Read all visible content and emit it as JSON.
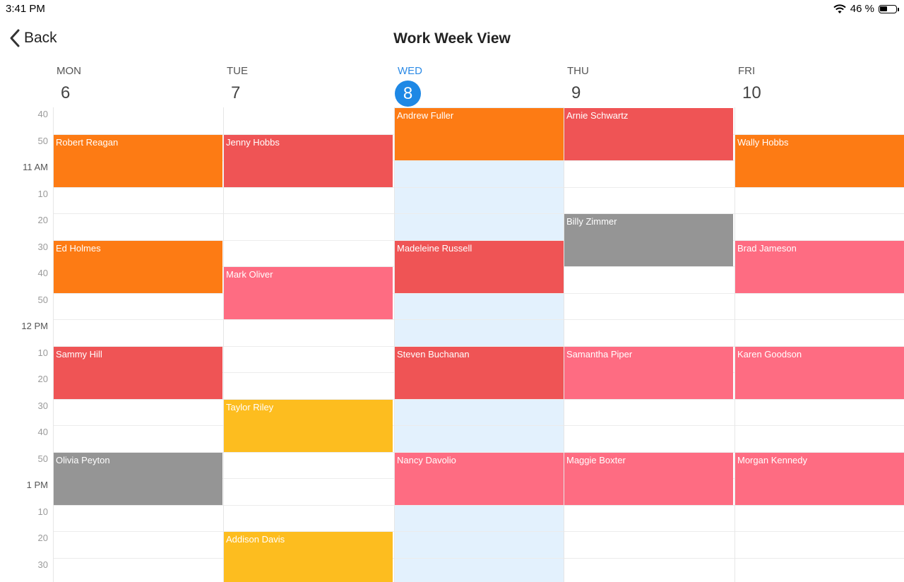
{
  "status": {
    "time": "3:41 PM",
    "battery": "46 %",
    "battery_level": 0.46
  },
  "nav": {
    "back_label": "Back",
    "title": "Work Week View"
  },
  "days": [
    {
      "name": "MON",
      "num": "6"
    },
    {
      "name": "TUE",
      "num": "7"
    },
    {
      "name": "WED",
      "num": "8",
      "today": true
    },
    {
      "name": "THU",
      "num": "9"
    },
    {
      "name": "FRI",
      "num": "10"
    }
  ],
  "time_labels": [
    "40",
    "50",
    "11 AM",
    "10",
    "20",
    "30",
    "40",
    "50",
    "12 PM",
    "10",
    "20",
    "30",
    "40",
    "50",
    "1 PM",
    "10",
    "20",
    "30"
  ],
  "colors": {
    "orange": "#fd7b14",
    "red": "#ef5455",
    "pink": "#fe6c82",
    "gray": "#959595",
    "yellow": "#fdbd1f",
    "today_bg": "#e3f1fd",
    "today_accent": "#1e88e5"
  },
  "appointments": [
    {
      "day": 0,
      "start": 1,
      "span": 2,
      "name": "Robert Reagan",
      "color": "orange"
    },
    {
      "day": 0,
      "start": 5,
      "span": 2,
      "name": "Ed Holmes",
      "color": "orange"
    },
    {
      "day": 0,
      "start": 9,
      "span": 2,
      "name": "Sammy Hill",
      "color": "red"
    },
    {
      "day": 0,
      "start": 13,
      "span": 2,
      "name": "Olivia Peyton",
      "color": "gray"
    },
    {
      "day": 1,
      "start": 1,
      "span": 2,
      "name": "Jenny Hobbs",
      "color": "red"
    },
    {
      "day": 1,
      "start": 6,
      "span": 2,
      "name": "Mark Oliver",
      "color": "pink"
    },
    {
      "day": 1,
      "start": 11,
      "span": 2,
      "name": "Taylor Riley",
      "color": "yellow"
    },
    {
      "day": 1,
      "start": 16,
      "span": 2,
      "name": "Addison Davis",
      "color": "yellow"
    },
    {
      "day": 2,
      "start": 0,
      "span": 2,
      "name": "Andrew Fuller",
      "color": "orange"
    },
    {
      "day": 2,
      "start": 5,
      "span": 2,
      "name": "Madeleine Russell",
      "color": "red"
    },
    {
      "day": 2,
      "start": 9,
      "span": 2,
      "name": "Steven Buchanan",
      "color": "red"
    },
    {
      "day": 2,
      "start": 13,
      "span": 2,
      "name": "Nancy Davolio",
      "color": "pink"
    },
    {
      "day": 3,
      "start": 0,
      "span": 2,
      "name": "Arnie Schwartz",
      "color": "red"
    },
    {
      "day": 3,
      "start": 4,
      "span": 2,
      "name": "Billy Zimmer",
      "color": "gray"
    },
    {
      "day": 3,
      "start": 9,
      "span": 2,
      "name": "Samantha Piper",
      "color": "pink"
    },
    {
      "day": 3,
      "start": 13,
      "span": 2,
      "name": "Maggie Boxter",
      "color": "pink"
    },
    {
      "day": 4,
      "start": 1,
      "span": 2,
      "name": "Wally Hobbs",
      "color": "orange"
    },
    {
      "day": 4,
      "start": 5,
      "span": 2,
      "name": "Brad Jameson",
      "color": "pink"
    },
    {
      "day": 4,
      "start": 9,
      "span": 2,
      "name": "Karen Goodson",
      "color": "pink"
    },
    {
      "day": 4,
      "start": 13,
      "span": 2,
      "name": "Morgan Kennedy",
      "color": "pink"
    }
  ]
}
